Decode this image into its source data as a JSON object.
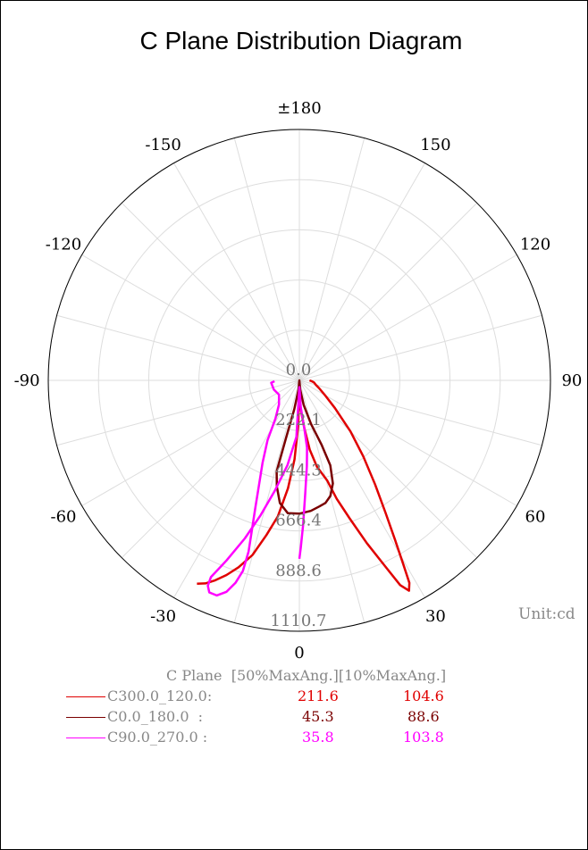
{
  "chart_data": {
    "type": "polar-line",
    "title": "C Plane Distribution Diagram",
    "unit_label": "Unit:cd",
    "angle_ticks": [
      "±180",
      "150",
      "120",
      "90",
      "60",
      "30",
      "0",
      "-30",
      "-60",
      "-90",
      "-120",
      "-150"
    ],
    "radial_ticks": [
      "0.0",
      "222.1",
      "444.3",
      "666.4",
      "888.6",
      "1110.7"
    ],
    "r_max": 1110.7,
    "grid": true,
    "series": [
      {
        "name": "C300.0_120.0",
        "color": "#e00000",
        "points": [
          [
            -26.7,
            1008
          ],
          [
            -24.8,
            990
          ],
          [
            -22.8,
            960
          ],
          [
            -20.5,
            920
          ],
          [
            -18.0,
            870
          ],
          [
            -15.0,
            800
          ],
          [
            -12.0,
            700
          ],
          [
            -9.0,
            610
          ],
          [
            -6.0,
            480
          ],
          [
            -3.5,
            350
          ],
          [
            -1.5,
            200
          ],
          [
            0,
            30
          ],
          [
            2.0,
            110
          ],
          [
            4.0,
            150
          ],
          [
            6.0,
            215
          ],
          [
            8.5,
            310
          ],
          [
            11.5,
            390
          ],
          [
            15.5,
            460
          ],
          [
            17.5,
            550
          ],
          [
            20.0,
            650
          ],
          [
            22.5,
            780
          ],
          [
            24.8,
            910
          ],
          [
            26.2,
            1010
          ],
          [
            27.5,
            1050
          ],
          [
            28.5,
            1020
          ],
          [
            29.5,
            930
          ],
          [
            31.0,
            820
          ],
          [
            33.0,
            700
          ],
          [
            36.0,
            570
          ],
          [
            40.0,
            440
          ],
          [
            45.0,
            320
          ],
          [
            52.0,
            200
          ],
          [
            60.0,
            130
          ],
          [
            68.0,
            95
          ],
          [
            75.0,
            75
          ],
          [
            82.0,
            65
          ],
          [
            86.0,
            55
          ],
          [
            90.0,
            45
          ]
        ]
      },
      {
        "name": "C0.0_180.0",
        "color": "#7a0000",
        "points": [
          [
            -14.0,
            415
          ],
          [
            -12.0,
            480
          ],
          [
            -9.0,
            550
          ],
          [
            -5.0,
            590
          ],
          [
            0,
            590
          ],
          [
            5.0,
            580
          ],
          [
            9.0,
            565
          ],
          [
            12.0,
            555
          ],
          [
            15.0,
            530
          ],
          [
            18.0,
            480
          ],
          [
            20.0,
            400
          ],
          [
            19.0,
            300
          ],
          [
            15.0,
            200
          ],
          [
            10.0,
            110
          ],
          [
            5.0,
            40
          ],
          [
            0,
            0
          ],
          [
            -5.0,
            40
          ],
          [
            -10.0,
            130
          ],
          [
            -13.0,
            260
          ],
          [
            -14.0,
            415
          ]
        ]
      },
      {
        "name": "C90.0_270.0",
        "color": "#ff00ff",
        "points": [
          [
            -88.0,
            110
          ],
          [
            -85.0,
            125
          ],
          [
            -70.0,
            120
          ],
          [
            -55.0,
            110
          ],
          [
            -40.0,
            140
          ],
          [
            -32.0,
            200
          ],
          [
            -28.0,
            300
          ],
          [
            -24.0,
            400
          ],
          [
            -21.0,
            500
          ],
          [
            -19.0,
            600
          ],
          [
            -17.5,
            700
          ],
          [
            -16.5,
            790
          ],
          [
            -16.5,
            880
          ],
          [
            -17.5,
            940
          ],
          [
            -19.0,
            990
          ],
          [
            -21.0,
            1020
          ],
          [
            -23.0,
            1020
          ],
          [
            -24.0,
            995
          ],
          [
            -24.2,
            955
          ],
          [
            -22.0,
            860
          ],
          [
            -19.0,
            740
          ],
          [
            -16.0,
            620
          ],
          [
            -12.5,
            500
          ],
          [
            -8.0,
            380
          ],
          [
            -3.0,
            250
          ],
          [
            0,
            30
          ],
          [
            3.0,
            120
          ],
          [
            6.0,
            220
          ],
          [
            6.5,
            300
          ],
          [
            5.0,
            380
          ],
          [
            3.0,
            500
          ],
          [
            1.5,
            640
          ],
          [
            0.5,
            740
          ],
          [
            0,
            790
          ]
        ]
      }
    ]
  },
  "table": {
    "header": "C Plane  [50%MaxAng.][10%MaxAng.]",
    "rows": [
      {
        "label": "C300.0_120.0:",
        "v50": "211.6",
        "v10": "104.6",
        "color": "#e00000"
      },
      {
        "label": "C0.0_180.0  :",
        "v50": "45.3",
        "v10": "88.6",
        "color": "#7a0000"
      },
      {
        "label": "C90.0_270.0 :",
        "v50": "35.8",
        "v10": "103.8",
        "color": "#ff00ff"
      }
    ]
  }
}
